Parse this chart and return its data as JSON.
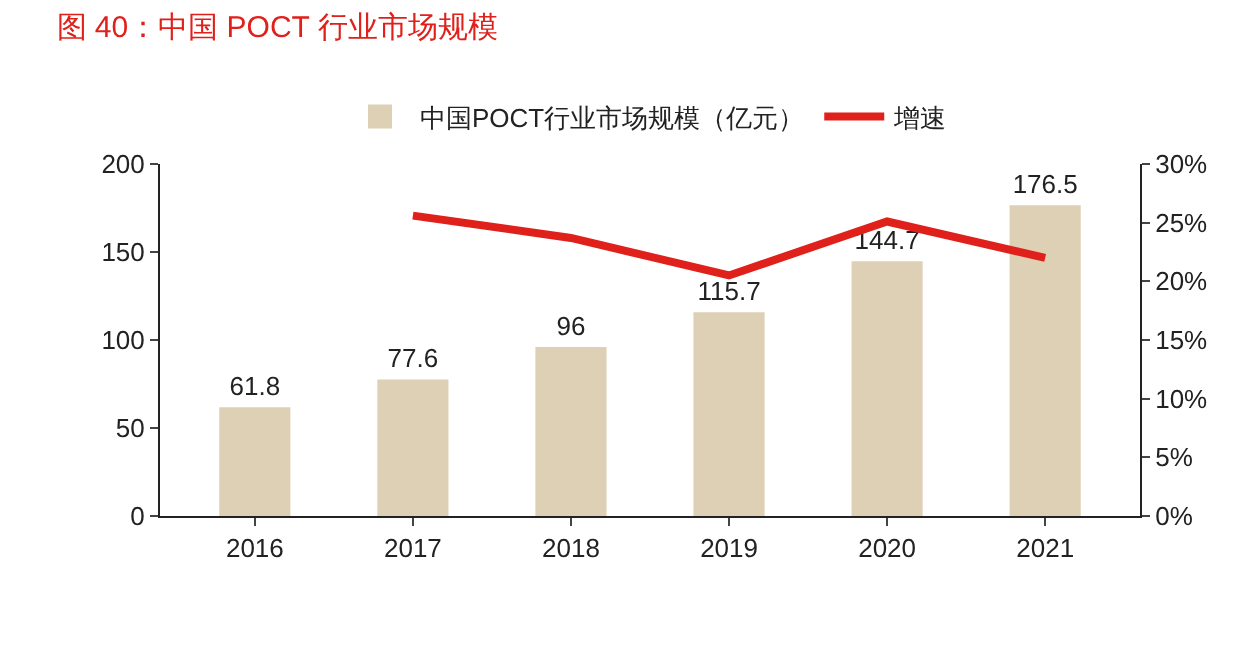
{
  "chart_data": {
    "type": "bar",
    "title": "图 40：中国 POCT 行业市场规模",
    "categories": [
      "2016",
      "2017",
      "2018",
      "2019",
      "2020",
      "2021"
    ],
    "series": [
      {
        "name": "中国POCT行业市场规模（亿元）",
        "color": "#ddd0b4",
        "values": [
          61.8,
          77.6,
          96,
          115.7,
          144.7,
          176.5
        ],
        "data_labels": true
      },
      {
        "name": "增速",
        "type": "line",
        "axis": "y2",
        "color": "#e0201b",
        "values": [
          null,
          25.6,
          23.7,
          20.5,
          25.1,
          22.0
        ],
        "marker": "none"
      }
    ],
    "ylim": [
      0,
      200
    ],
    "yticks": [
      0,
      50,
      100,
      150,
      200
    ],
    "y2lim": [
      0,
      30
    ],
    "y2ticks": [
      {
        "value": 0,
        "label": "0%"
      },
      {
        "value": 5,
        "label": "5%"
      },
      {
        "value": 10,
        "label": "10%"
      },
      {
        "value": 15,
        "label": "15%"
      },
      {
        "value": 20,
        "label": "20%"
      },
      {
        "value": 25,
        "label": "25%"
      },
      {
        "value": 30,
        "label": "30%"
      }
    ],
    "grid": false,
    "legend": "top"
  }
}
